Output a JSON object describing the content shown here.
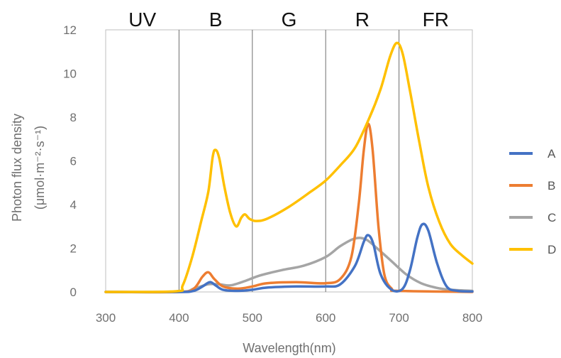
{
  "chart_data": {
    "type": "line",
    "xlabel": "Wavelength(nm)",
    "ylabel": "Photon flux density",
    "ylabel_unit": "(μmol·m⁻²·s⁻¹)",
    "xlim": [
      300,
      800
    ],
    "ylim": [
      0,
      12
    ],
    "x_ticks": [
      "300",
      "400",
      "500",
      "600",
      "700",
      "800"
    ],
    "y_ticks": [
      "0",
      "2",
      "4",
      "6",
      "8",
      "10",
      "12"
    ],
    "grid": false,
    "legend_position": "right",
    "band_dividers": [
      400,
      500,
      600,
      700
    ],
    "bands": [
      {
        "label": "UV",
        "x": 350
      },
      {
        "label": "B",
        "x": 450
      },
      {
        "label": "G",
        "x": 550
      },
      {
        "label": "R",
        "x": 650
      },
      {
        "label": "FR",
        "x": 750
      }
    ],
    "series": [
      {
        "name": "A",
        "color": "#4472c4",
        "points": [
          [
            300,
            0
          ],
          [
            400,
            0
          ],
          [
            420,
            0.05
          ],
          [
            432,
            0.25
          ],
          [
            442,
            0.45
          ],
          [
            450,
            0.3
          ],
          [
            460,
            0.1
          ],
          [
            480,
            0.05
          ],
          [
            500,
            0.1
          ],
          [
            520,
            0.2
          ],
          [
            560,
            0.25
          ],
          [
            600,
            0.25
          ],
          [
            620,
            0.35
          ],
          [
            640,
            1.2
          ],
          [
            652,
            2.3
          ],
          [
            658,
            2.6
          ],
          [
            665,
            2.2
          ],
          [
            675,
            0.8
          ],
          [
            690,
            0.1
          ],
          [
            705,
            0.15
          ],
          [
            715,
            1.0
          ],
          [
            725,
            2.5
          ],
          [
            732,
            3.1
          ],
          [
            740,
            2.8
          ],
          [
            752,
            1.3
          ],
          [
            765,
            0.25
          ],
          [
            780,
            0.05
          ],
          [
            800,
            0.02
          ]
        ]
      },
      {
        "name": "B",
        "color": "#ed7d31",
        "points": [
          [
            300,
            0
          ],
          [
            400,
            0
          ],
          [
            420,
            0.15
          ],
          [
            432,
            0.7
          ],
          [
            440,
            0.9
          ],
          [
            448,
            0.6
          ],
          [
            460,
            0.25
          ],
          [
            480,
            0.15
          ],
          [
            500,
            0.25
          ],
          [
            520,
            0.4
          ],
          [
            560,
            0.45
          ],
          [
            600,
            0.4
          ],
          [
            620,
            0.6
          ],
          [
            635,
            1.6
          ],
          [
            645,
            4.0
          ],
          [
            652,
            6.5
          ],
          [
            658,
            7.7
          ],
          [
            664,
            6.5
          ],
          [
            672,
            3.0
          ],
          [
            680,
            0.8
          ],
          [
            690,
            0.15
          ],
          [
            700,
            0.05
          ],
          [
            800,
            0
          ]
        ]
      },
      {
        "name": "C",
        "color": "#a5a5a5",
        "points": [
          [
            300,
            0
          ],
          [
            400,
            0
          ],
          [
            420,
            0.15
          ],
          [
            440,
            0.35
          ],
          [
            455,
            0.35
          ],
          [
            470,
            0.3
          ],
          [
            490,
            0.5
          ],
          [
            510,
            0.75
          ],
          [
            540,
            1.0
          ],
          [
            570,
            1.2
          ],
          [
            600,
            1.6
          ],
          [
            620,
            2.1
          ],
          [
            640,
            2.45
          ],
          [
            655,
            2.4
          ],
          [
            670,
            2.0
          ],
          [
            690,
            1.4
          ],
          [
            710,
            0.8
          ],
          [
            730,
            0.4
          ],
          [
            750,
            0.2
          ],
          [
            770,
            0.1
          ],
          [
            800,
            0.05
          ]
        ]
      },
      {
        "name": "D",
        "color": "#ffc000",
        "points": [
          [
            300,
            0
          ],
          [
            395,
            0.03
          ],
          [
            405,
            0.3
          ],
          [
            418,
            1.6
          ],
          [
            430,
            3.2
          ],
          [
            440,
            4.6
          ],
          [
            446,
            6.2
          ],
          [
            450,
            6.5
          ],
          [
            455,
            6.1
          ],
          [
            462,
            4.8
          ],
          [
            470,
            3.6
          ],
          [
            478,
            3.0
          ],
          [
            485,
            3.4
          ],
          [
            490,
            3.55
          ],
          [
            496,
            3.35
          ],
          [
            505,
            3.25
          ],
          [
            520,
            3.35
          ],
          [
            550,
            3.9
          ],
          [
            580,
            4.6
          ],
          [
            600,
            5.1
          ],
          [
            620,
            5.8
          ],
          [
            640,
            6.6
          ],
          [
            660,
            8.0
          ],
          [
            675,
            9.3
          ],
          [
            688,
            10.8
          ],
          [
            697,
            11.4
          ],
          [
            705,
            10.9
          ],
          [
            715,
            9.2
          ],
          [
            728,
            6.8
          ],
          [
            740,
            4.8
          ],
          [
            755,
            3.2
          ],
          [
            770,
            2.2
          ],
          [
            785,
            1.7
          ],
          [
            800,
            1.3
          ]
        ]
      }
    ]
  }
}
